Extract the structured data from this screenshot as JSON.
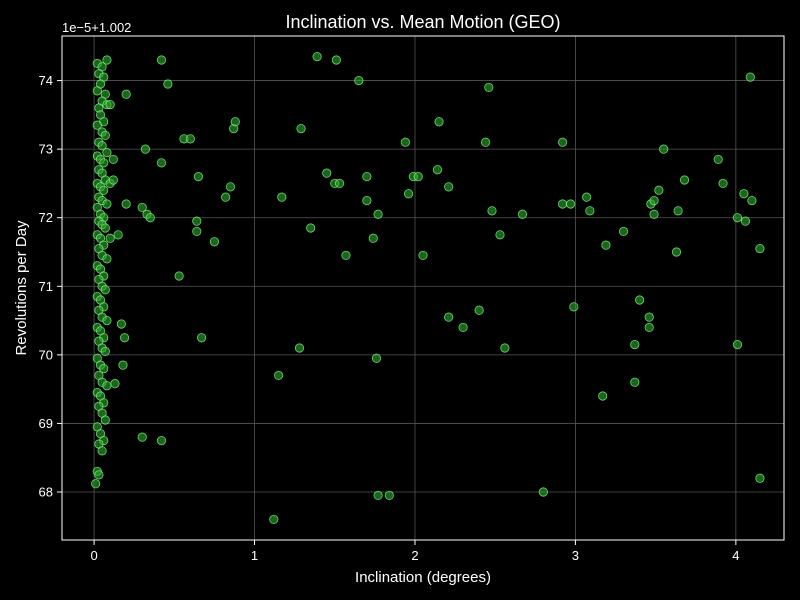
{
  "chart_data": {
    "type": "scatter",
    "title": "Inclination vs. Mean Motion (GEO)",
    "xlabel": "Inclination (degrees)",
    "ylabel": "Revolutions per Day",
    "offset_label": "1e−5+1.002",
    "xlim": [
      -0.2,
      4.3
    ],
    "ylim": [
      67.3,
      74.65
    ],
    "x_ticks": [
      0,
      1,
      2,
      3,
      4
    ],
    "y_ticks": [
      68,
      69,
      70,
      71,
      72,
      73,
      74
    ],
    "grid": true,
    "colors": {
      "background": "#000000",
      "marker_fill": "#2fa82f",
      "marker_edge": "#7dff7d",
      "grid": "#555555",
      "axes": "#ffffff"
    },
    "points": [
      [
        0.02,
        74.25
      ],
      [
        0.05,
        74.2
      ],
      [
        0.08,
        74.3
      ],
      [
        0.03,
        74.1
      ],
      [
        0.06,
        74.05
      ],
      [
        0.04,
        73.95
      ],
      [
        0.07,
        73.8
      ],
      [
        0.02,
        73.85
      ],
      [
        0.05,
        73.7
      ],
      [
        0.03,
        73.6
      ],
      [
        0.08,
        73.65
      ],
      [
        0.04,
        73.5
      ],
      [
        0.06,
        73.4
      ],
      [
        0.02,
        73.35
      ],
      [
        0.05,
        73.25
      ],
      [
        0.07,
        73.2
      ],
      [
        0.03,
        73.1
      ],
      [
        0.05,
        73.05
      ],
      [
        0.08,
        72.95
      ],
      [
        0.02,
        72.9
      ],
      [
        0.04,
        72.85
      ],
      [
        0.06,
        72.8
      ],
      [
        0.03,
        72.7
      ],
      [
        0.05,
        72.65
      ],
      [
        0.07,
        72.55
      ],
      [
        0.02,
        72.5
      ],
      [
        0.04,
        72.45
      ],
      [
        0.06,
        72.4
      ],
      [
        0.03,
        72.3
      ],
      [
        0.05,
        72.25
      ],
      [
        0.08,
        72.2
      ],
      [
        0.02,
        72.15
      ],
      [
        0.04,
        72.05
      ],
      [
        0.06,
        72.0
      ],
      [
        0.03,
        71.95
      ],
      [
        0.05,
        71.9
      ],
      [
        0.07,
        71.85
      ],
      [
        0.02,
        71.75
      ],
      [
        0.04,
        71.7
      ],
      [
        0.06,
        71.6
      ],
      [
        0.03,
        71.55
      ],
      [
        0.05,
        71.45
      ],
      [
        0.08,
        71.4
      ],
      [
        0.02,
        71.3
      ],
      [
        0.04,
        71.25
      ],
      [
        0.06,
        71.15
      ],
      [
        0.03,
        71.1
      ],
      [
        0.05,
        71.0
      ],
      [
        0.07,
        70.95
      ],
      [
        0.02,
        70.85
      ],
      [
        0.04,
        70.8
      ],
      [
        0.06,
        70.7
      ],
      [
        0.03,
        70.65
      ],
      [
        0.05,
        70.55
      ],
      [
        0.08,
        70.5
      ],
      [
        0.02,
        70.4
      ],
      [
        0.04,
        70.35
      ],
      [
        0.06,
        70.25
      ],
      [
        0.03,
        70.2
      ],
      [
        0.05,
        70.1
      ],
      [
        0.07,
        70.05
      ],
      [
        0.02,
        69.95
      ],
      [
        0.04,
        69.85
      ],
      [
        0.06,
        69.8
      ],
      [
        0.03,
        69.7
      ],
      [
        0.05,
        69.6
      ],
      [
        0.08,
        69.55
      ],
      [
        0.02,
        69.45
      ],
      [
        0.04,
        69.4
      ],
      [
        0.06,
        69.3
      ],
      [
        0.03,
        69.25
      ],
      [
        0.05,
        69.15
      ],
      [
        0.07,
        69.05
      ],
      [
        0.02,
        68.95
      ],
      [
        0.04,
        68.85
      ],
      [
        0.06,
        68.75
      ],
      [
        0.03,
        68.7
      ],
      [
        0.05,
        68.6
      ],
      [
        0.02,
        68.3
      ],
      [
        0.03,
        68.25
      ],
      [
        0.01,
        68.12
      ],
      [
        0.1,
        73.65
      ],
      [
        0.2,
        73.8
      ],
      [
        0.12,
        72.85
      ],
      [
        0.1,
        72.5
      ],
      [
        0.15,
        71.75
      ],
      [
        0.1,
        71.7
      ],
      [
        0.12,
        72.55
      ],
      [
        0.17,
        70.45
      ],
      [
        0.19,
        70.25
      ],
      [
        0.18,
        69.85
      ],
      [
        0.13,
        69.58
      ],
      [
        0.3,
        68.8
      ],
      [
        0.2,
        72.2
      ],
      [
        0.3,
        72.15
      ],
      [
        0.33,
        72.05
      ],
      [
        0.35,
        72.0
      ],
      [
        0.32,
        73.0
      ],
      [
        0.42,
        72.8
      ],
      [
        0.42,
        74.3
      ],
      [
        0.46,
        73.95
      ],
      [
        0.53,
        71.15
      ],
      [
        0.42,
        68.75
      ],
      [
        0.56,
        73.15
      ],
      [
        0.6,
        73.15
      ],
      [
        0.65,
        72.6
      ],
      [
        0.64,
        71.95
      ],
      [
        0.64,
        71.8
      ],
      [
        0.67,
        70.25
      ],
      [
        0.75,
        71.65
      ],
      [
        0.82,
        72.3
      ],
      [
        0.85,
        72.45
      ],
      [
        0.87,
        73.3
      ],
      [
        0.88,
        73.4
      ],
      [
        1.12,
        67.6
      ],
      [
        1.15,
        69.7
      ],
      [
        1.17,
        72.3
      ],
      [
        1.28,
        70.1
      ],
      [
        1.29,
        73.3
      ],
      [
        1.35,
        71.85
      ],
      [
        1.39,
        74.35
      ],
      [
        1.45,
        72.65
      ],
      [
        1.5,
        72.5
      ],
      [
        1.51,
        74.3
      ],
      [
        1.53,
        72.5
      ],
      [
        1.57,
        71.45
      ],
      [
        1.65,
        74.0
      ],
      [
        1.7,
        72.6
      ],
      [
        1.7,
        72.25
      ],
      [
        1.74,
        71.7
      ],
      [
        1.76,
        69.95
      ],
      [
        1.77,
        72.05
      ],
      [
        1.77,
        67.95
      ],
      [
        1.84,
        67.95
      ],
      [
        1.94,
        73.1
      ],
      [
        1.96,
        72.35
      ],
      [
        1.99,
        72.6
      ],
      [
        2.02,
        72.6
      ],
      [
        2.05,
        71.45
      ],
      [
        2.14,
        72.7
      ],
      [
        2.15,
        73.4
      ],
      [
        2.21,
        72.45
      ],
      [
        2.21,
        70.55
      ],
      [
        2.3,
        70.4
      ],
      [
        2.4,
        70.65
      ],
      [
        2.44,
        73.1
      ],
      [
        2.46,
        73.9
      ],
      [
        2.48,
        72.1
      ],
      [
        2.53,
        71.75
      ],
      [
        2.56,
        70.1
      ],
      [
        2.67,
        72.05
      ],
      [
        2.8,
        68.0
      ],
      [
        2.92,
        72.2
      ],
      [
        2.92,
        73.1
      ],
      [
        2.97,
        72.2
      ],
      [
        2.99,
        70.7
      ],
      [
        3.07,
        72.3
      ],
      [
        3.09,
        72.1
      ],
      [
        3.17,
        69.4
      ],
      [
        3.19,
        71.6
      ],
      [
        3.3,
        71.8
      ],
      [
        3.37,
        70.15
      ],
      [
        3.37,
        69.6
      ],
      [
        3.4,
        70.8
      ],
      [
        3.46,
        70.55
      ],
      [
        3.46,
        70.4
      ],
      [
        3.47,
        72.2
      ],
      [
        3.49,
        72.25
      ],
      [
        3.49,
        72.05
      ],
      [
        3.52,
        72.4
      ],
      [
        3.55,
        73.0
      ],
      [
        3.63,
        71.5
      ],
      [
        3.64,
        72.1
      ],
      [
        3.68,
        72.55
      ],
      [
        3.89,
        72.85
      ],
      [
        3.92,
        72.5
      ],
      [
        4.01,
        72.0
      ],
      [
        4.01,
        70.15
      ],
      [
        4.05,
        72.35
      ],
      [
        4.06,
        71.95
      ],
      [
        4.09,
        74.05
      ],
      [
        4.1,
        72.25
      ],
      [
        4.15,
        71.55
      ],
      [
        4.15,
        68.2
      ]
    ]
  }
}
